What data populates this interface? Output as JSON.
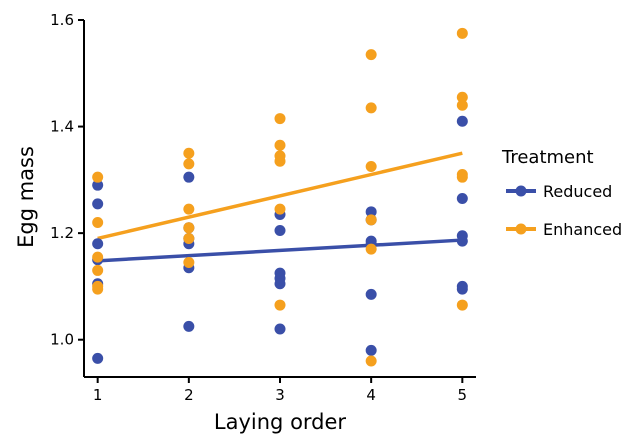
{
  "chart_data": {
    "type": "scatter",
    "xlabel": "Laying order",
    "ylabel": "Egg mass",
    "xlim": [
      0.85,
      5.15
    ],
    "ylim": [
      0.93,
      1.6
    ],
    "x_ticks": [
      1,
      2,
      3,
      4,
      5
    ],
    "y_ticks": [
      1.0,
      1.2,
      1.4,
      1.6
    ],
    "y_tick_labels": [
      "1.0",
      "1.2",
      "1.4",
      "1.6"
    ],
    "grid": false,
    "legend": {
      "title": "Treatment",
      "placement": "right"
    },
    "series": [
      {
        "name": "Reduced",
        "color": "#3a4fa8",
        "points": [
          {
            "x": 1,
            "y": 1.29
          },
          {
            "x": 1,
            "y": 1.255
          },
          {
            "x": 1,
            "y": 1.18
          },
          {
            "x": 1,
            "y": 1.15
          },
          {
            "x": 1,
            "y": 1.105
          },
          {
            "x": 1,
            "y": 0.965
          },
          {
            "x": 2,
            "y": 1.305
          },
          {
            "x": 2,
            "y": 1.21
          },
          {
            "x": 2,
            "y": 1.19
          },
          {
            "x": 2,
            "y": 1.18
          },
          {
            "x": 2,
            "y": 1.135
          },
          {
            "x": 2,
            "y": 1.025
          },
          {
            "x": 3,
            "y": 1.235
          },
          {
            "x": 3,
            "y": 1.205
          },
          {
            "x": 3,
            "y": 1.125
          },
          {
            "x": 3,
            "y": 1.115
          },
          {
            "x": 3,
            "y": 1.105
          },
          {
            "x": 3,
            "y": 1.02
          },
          {
            "x": 4,
            "y": 1.24
          },
          {
            "x": 4,
            "y": 1.225
          },
          {
            "x": 4,
            "y": 1.185
          },
          {
            "x": 4,
            "y": 1.18
          },
          {
            "x": 4,
            "y": 1.085
          },
          {
            "x": 4,
            "y": 0.98
          },
          {
            "x": 5,
            "y": 1.41
          },
          {
            "x": 5,
            "y": 1.265
          },
          {
            "x": 5,
            "y": 1.195
          },
          {
            "x": 5,
            "y": 1.185
          },
          {
            "x": 5,
            "y": 1.1
          },
          {
            "x": 5,
            "y": 1.095
          }
        ],
        "trend": {
          "x": [
            1,
            5
          ],
          "y": [
            1.148,
            1.187
          ]
        }
      },
      {
        "name": "Enhanced",
        "color": "#f5a01e",
        "points": [
          {
            "x": 1,
            "y": 1.305
          },
          {
            "x": 1,
            "y": 1.22
          },
          {
            "x": 1,
            "y": 1.155
          },
          {
            "x": 1,
            "y": 1.13
          },
          {
            "x": 1,
            "y": 1.1
          },
          {
            "x": 1,
            "y": 1.095
          },
          {
            "x": 2,
            "y": 1.35
          },
          {
            "x": 2,
            "y": 1.33
          },
          {
            "x": 2,
            "y": 1.245
          },
          {
            "x": 2,
            "y": 1.21
          },
          {
            "x": 2,
            "y": 1.19
          },
          {
            "x": 2,
            "y": 1.145
          },
          {
            "x": 3,
            "y": 1.415
          },
          {
            "x": 3,
            "y": 1.365
          },
          {
            "x": 3,
            "y": 1.345
          },
          {
            "x": 3,
            "y": 1.335
          },
          {
            "x": 3,
            "y": 1.245
          },
          {
            "x": 3,
            "y": 1.065
          },
          {
            "x": 4,
            "y": 1.535
          },
          {
            "x": 4,
            "y": 1.435
          },
          {
            "x": 4,
            "y": 1.325
          },
          {
            "x": 4,
            "y": 1.225
          },
          {
            "x": 4,
            "y": 1.17
          },
          {
            "x": 4,
            "y": 0.96
          },
          {
            "x": 5,
            "y": 1.575
          },
          {
            "x": 5,
            "y": 1.455
          },
          {
            "x": 5,
            "y": 1.44
          },
          {
            "x": 5,
            "y": 1.31
          },
          {
            "x": 5,
            "y": 1.305
          },
          {
            "x": 5,
            "y": 1.065
          }
        ],
        "trend": {
          "x": [
            1,
            5
          ],
          "y": [
            1.19,
            1.35
          ]
        }
      }
    ]
  }
}
